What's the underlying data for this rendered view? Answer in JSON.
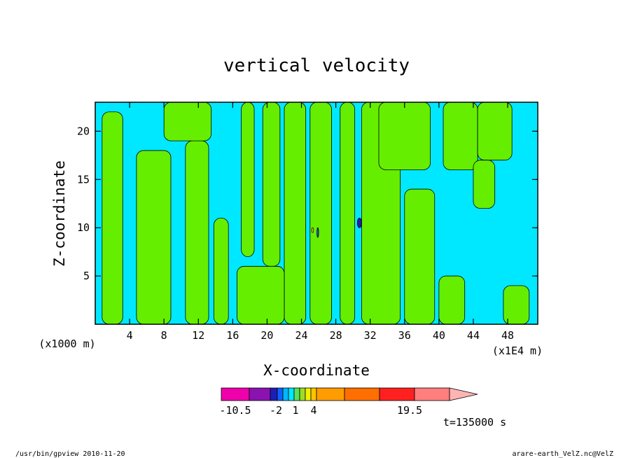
{
  "chart_data": {
    "type": "heatmap",
    "title": "vertical velocity",
    "xlabel": "X-coordinate",
    "ylabel": "Z-coordinate",
    "x_unit_left": "(x1000 m)",
    "x_unit_right": "(x1E4 m)",
    "xlim": [
      0,
      51.5
    ],
    "ylim": [
      0,
      23
    ],
    "x_ticks": [
      4,
      8,
      12,
      16,
      20,
      24,
      28,
      32,
      36,
      40,
      44,
      48
    ],
    "y_ticks": [
      5,
      10,
      15,
      20
    ],
    "background_color": "#00e8ff",
    "grid": false,
    "colorbar": {
      "colors": [
        "#ee00aa",
        "#8a12b0",
        "#1e1eb4",
        "#1060ff",
        "#00b8ff",
        "#00e8ff",
        "#5ae05a",
        "#9cdc28",
        "#f0f000",
        "#ffc400",
        "#ff9c00",
        "#ff6e00",
        "#ff2020",
        "#ff7e7e",
        "#ffb4b4"
      ],
      "tick_labels": [
        "-10.5",
        "-2",
        "1",
        "4",
        "19.5"
      ]
    },
    "regions": [
      {
        "color": "#66ee00",
        "x": [
          0.8,
          3.2
        ],
        "y": [
          0,
          22
        ]
      },
      {
        "color": "#66ee00",
        "x": [
          4.8,
          8.8
        ],
        "y": [
          0,
          18
        ]
      },
      {
        "color": "#66ee00",
        "x": [
          10.5,
          13.2
        ],
        "y": [
          0,
          19
        ]
      },
      {
        "color": "#66ee00",
        "x": [
          13.8,
          15.5
        ],
        "y": [
          0,
          11
        ]
      },
      {
        "color": "#66ee00",
        "x": [
          8.0,
          13.5
        ],
        "y": [
          19,
          23
        ]
      },
      {
        "color": "#66ee00",
        "x": [
          17.0,
          18.5
        ],
        "y": [
          7,
          23
        ]
      },
      {
        "color": "#66ee00",
        "x": [
          19.5,
          21.5
        ],
        "y": [
          6,
          23
        ]
      },
      {
        "color": "#66ee00",
        "x": [
          22.0,
          24.5
        ],
        "y": [
          0,
          23
        ]
      },
      {
        "color": "#66ee00",
        "x": [
          25.0,
          27.5
        ],
        "y": [
          0,
          23
        ]
      },
      {
        "color": "#66ee00",
        "x": [
          28.5,
          30.2
        ],
        "y": [
          0,
          23
        ]
      },
      {
        "color": "#66ee00",
        "x": [
          31.0,
          35.5
        ],
        "y": [
          0,
          23
        ]
      },
      {
        "color": "#66ee00",
        "x": [
          33.0,
          39.0
        ],
        "y": [
          16,
          23
        ]
      },
      {
        "color": "#66ee00",
        "x": [
          36.0,
          39.5
        ],
        "y": [
          0,
          14
        ]
      },
      {
        "color": "#66ee00",
        "x": [
          40.5,
          44.5
        ],
        "y": [
          16,
          23
        ]
      },
      {
        "color": "#66ee00",
        "x": [
          44.5,
          48.5
        ],
        "y": [
          17,
          23
        ]
      },
      {
        "color": "#66ee00",
        "x": [
          44.0,
          46.5
        ],
        "y": [
          12,
          17
        ]
      },
      {
        "color": "#66ee00",
        "x": [
          47.5,
          50.5
        ],
        "y": [
          0,
          4
        ]
      },
      {
        "color": "#66ee00",
        "x": [
          40.0,
          43.0
        ],
        "y": [
          0,
          5
        ]
      },
      {
        "color": "#66ee00",
        "x": [
          16.5,
          22.0
        ],
        "y": [
          0,
          6
        ]
      },
      {
        "color": "#1e1eb4",
        "x": [
          30.5,
          31.0
        ],
        "y": [
          10,
          11
        ]
      },
      {
        "color": "#1060ff",
        "x": [
          25.8,
          26.0
        ],
        "y": [
          9,
          10
        ]
      },
      {
        "color": "#f0f000",
        "x": [
          25.2,
          25.4
        ],
        "y": [
          9.5,
          10
        ]
      }
    ]
  },
  "annotations": {
    "time": "t=135000 s",
    "footer_left": "/usr/bin/gpview   2010-11-20",
    "footer_right": "arare-earth_VelZ.nc@VelZ"
  }
}
